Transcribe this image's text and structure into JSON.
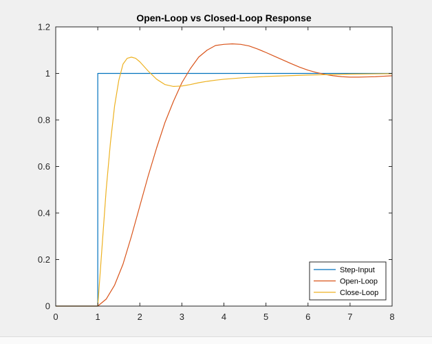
{
  "chart_data": {
    "type": "line",
    "title": "Open-Loop vs Closed-Loop Response",
    "xlabel": "",
    "ylabel": "",
    "xlim": [
      0,
      8
    ],
    "ylim": [
      0,
      1.2
    ],
    "xticks": [
      0,
      1,
      2,
      3,
      4,
      5,
      6,
      7,
      8
    ],
    "yticks": [
      0,
      0.2,
      0.4,
      0.6,
      0.8,
      1,
      1.2
    ],
    "grid": false,
    "legend_position": "bottom-right",
    "series": [
      {
        "name": "Step-Input",
        "color": "#0072BD",
        "x": [
          0,
          1,
          1,
          8
        ],
        "y": [
          0,
          0,
          1,
          1
        ]
      },
      {
        "name": "Open-Loop",
        "color": "#D95319",
        "x": [
          0,
          1,
          1.2,
          1.4,
          1.6,
          1.8,
          2.0,
          2.2,
          2.4,
          2.6,
          2.8,
          3.0,
          3.2,
          3.4,
          3.6,
          3.8,
          4.0,
          4.2,
          4.4,
          4.6,
          4.8,
          5.0,
          5.2,
          5.4,
          5.6,
          5.8,
          6.0,
          6.2,
          6.4,
          6.6,
          6.8,
          7.0,
          7.2,
          7.4,
          7.6,
          7.8,
          8.0
        ],
        "y": [
          0,
          0,
          0.03,
          0.09,
          0.18,
          0.3,
          0.43,
          0.56,
          0.68,
          0.79,
          0.88,
          0.96,
          1.02,
          1.07,
          1.1,
          1.12,
          1.125,
          1.127,
          1.125,
          1.118,
          1.105,
          1.09,
          1.074,
          1.058,
          1.042,
          1.027,
          1.014,
          1.004,
          0.996,
          0.99,
          0.986,
          0.984,
          0.984,
          0.985,
          0.986,
          0.988,
          0.99
        ]
      },
      {
        "name": "Close-Loop",
        "color": "#EDB120",
        "x": [
          0,
          1,
          1.1,
          1.2,
          1.3,
          1.4,
          1.5,
          1.6,
          1.7,
          1.8,
          1.9,
          2.0,
          2.2,
          2.4,
          2.6,
          2.8,
          3.0,
          3.2,
          3.4,
          3.6,
          3.8,
          4.0,
          4.5,
          5.0,
          5.5,
          6.0,
          6.5,
          7.0,
          7.5,
          8.0
        ],
        "y": [
          0,
          0,
          0.25,
          0.5,
          0.7,
          0.86,
          0.97,
          1.04,
          1.065,
          1.07,
          1.065,
          1.05,
          1.01,
          0.975,
          0.952,
          0.944,
          0.946,
          0.952,
          0.96,
          0.966,
          0.971,
          0.975,
          0.982,
          0.987,
          0.99,
          0.993,
          0.995,
          0.997,
          0.998,
          0.999
        ]
      }
    ]
  }
}
